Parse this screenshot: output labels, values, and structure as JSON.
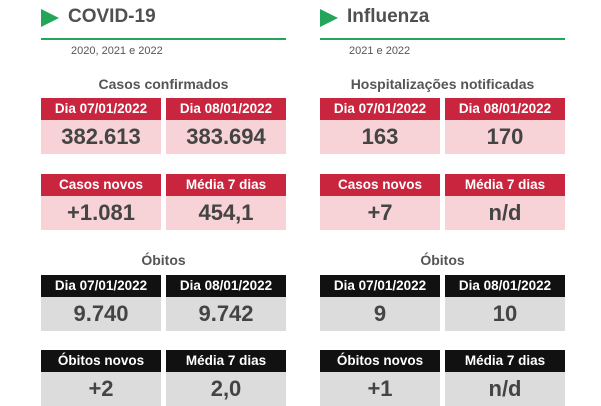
{
  "covid": {
    "title": "COVID-19",
    "years": "2020, 2021 e 2022",
    "confirmed": {
      "heading": "Casos confirmados",
      "dates": [
        "Dia 07/01/2022",
        "Dia 08/01/2022"
      ],
      "values": [
        "382.613",
        "383.694"
      ],
      "labels": [
        "Casos novos",
        "Média 7 dias"
      ],
      "values2": [
        "+1.081",
        "454,1"
      ]
    },
    "deaths": {
      "heading": "Óbitos",
      "dates": [
        "Dia 07/01/2022",
        "Dia 08/01/2022"
      ],
      "values": [
        "9.740",
        "9.742"
      ],
      "labels": [
        "Óbitos novos",
        "Média 7 dias"
      ],
      "values2": [
        "+2",
        "2,0"
      ]
    }
  },
  "flu": {
    "title": "Influenza",
    "years": "2021 e 2022",
    "hosp": {
      "heading": "Hospitalizações notificadas",
      "dates": [
        "Dia 07/01/2022",
        "Dia 08/01/2022"
      ],
      "values": [
        "163",
        "170"
      ],
      "labels": [
        "Casos novos",
        "Média 7 dias"
      ],
      "values2": [
        "+7",
        "n/d"
      ]
    },
    "deaths": {
      "heading": "Óbitos",
      "dates": [
        "Dia 07/01/2022",
        "Dia 08/01/2022"
      ],
      "values": [
        "9",
        "10"
      ],
      "labels": [
        "Óbitos novos",
        "Média 7 dias"
      ],
      "values2": [
        "+1",
        "n/d"
      ]
    }
  },
  "colors": {
    "accent": "#23a65a",
    "red": "#c9253f",
    "pink": "#f7d2d6",
    "black": "#111111",
    "grey": "#dcdcdc"
  }
}
